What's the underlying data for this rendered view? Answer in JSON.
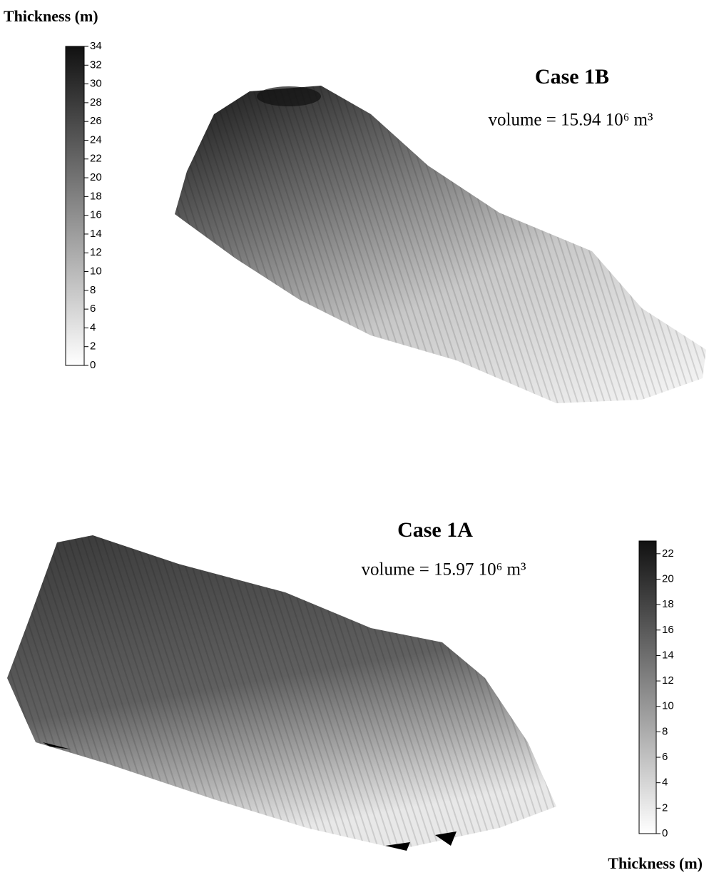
{
  "chart_data": [
    {
      "type": "surface",
      "title": "Case 1B",
      "annotation": "volume = 15.94 10⁶ m³",
      "colorbar_label": "Thickness (m)",
      "clim": [
        0,
        34
      ],
      "cticks": [
        0,
        2,
        4,
        6,
        8,
        10,
        12,
        14,
        16,
        18,
        20,
        22,
        24,
        26,
        28,
        30,
        32,
        34
      ]
    },
    {
      "type": "surface",
      "title": "Case 1A",
      "annotation": "volume = 15.97 10⁶ m³",
      "colorbar_label": "Thickness (m)",
      "clim": [
        0,
        23
      ],
      "cticks": [
        0,
        2,
        4,
        6,
        8,
        10,
        12,
        14,
        16,
        18,
        20,
        22
      ]
    }
  ]
}
